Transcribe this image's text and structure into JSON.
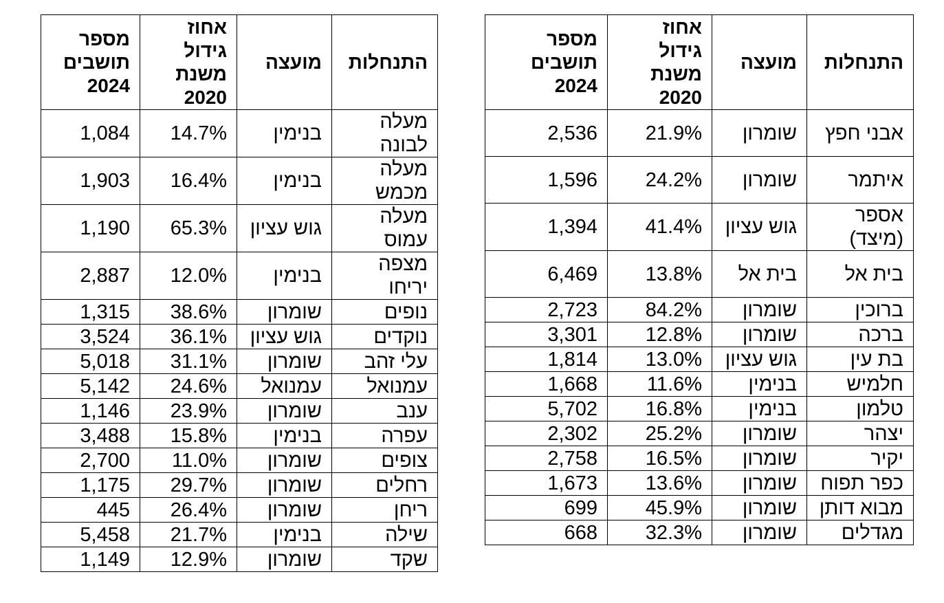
{
  "page": {
    "background_color": "#ffffff",
    "text_color": "#000000",
    "border_color": "#000000",
    "language": "he",
    "direction": "rtl"
  },
  "column_keys": [
    "settlement",
    "council",
    "growth-percent",
    "residents-2024"
  ],
  "right_table": {
    "headers": [
      "התנחלות",
      "מועצה",
      "אחוז\nגידול\nמשנת\n2020",
      "מספר\nתושבים\n2024"
    ],
    "rows": [
      [
        "אבני חפץ",
        "שומרון",
        "21.9%",
        "2,536"
      ],
      [
        "איתמר",
        "שומרון",
        "24.2%",
        "1,596"
      ],
      [
        "אספר\n(מיצד)",
        "גוש עציון",
        "41.4%",
        "1,394"
      ],
      [
        "בית אל",
        "בית אל",
        "13.8%",
        "6,469"
      ],
      [
        "ברוכין",
        "שומרון",
        "84.2%",
        "2,723"
      ],
      [
        "ברכה",
        "שומרון",
        "12.8%",
        "3,301"
      ],
      [
        "בת עין",
        "גוש עציון",
        "13.0%",
        "1,814"
      ],
      [
        "חלמיש",
        "בנימין",
        "11.6%",
        "1,668"
      ],
      [
        "טלמון",
        "בנימין",
        "16.8%",
        "5,702"
      ],
      [
        "יצהר",
        "שומרון",
        "25.2%",
        "2,302"
      ],
      [
        "יקיר",
        "שומרון",
        "16.5%",
        "2,758"
      ],
      [
        "כפר תפוח",
        "שומרון",
        "13.6%",
        "1,673"
      ],
      [
        "מבוא דותן",
        "שומרון",
        "45.9%",
        "699"
      ],
      [
        "מגדלים",
        "שומרון",
        "32.3%",
        "668"
      ]
    ]
  },
  "left_table": {
    "headers": [
      "התנחלות",
      "מועצה",
      "אחוז\nגידול\nמשנת\n2020",
      "מספר\nתושבים\n2024"
    ],
    "rows": [
      [
        "מעלה\nלבונה",
        "בנימין",
        "14.7%",
        "1,084"
      ],
      [
        "מעלה\nמכמש",
        "בנימין",
        "16.4%",
        "1,903"
      ],
      [
        "מעלה\nעמוס",
        "גוש עציון",
        "65.3%",
        "1,190"
      ],
      [
        "מצפה\nיריחו",
        "בנימין",
        "12.0%",
        "2,887"
      ],
      [
        "נופים",
        "שומרון",
        "38.6%",
        "1,315"
      ],
      [
        "נוקדים",
        "גוש עציון",
        "36.1%",
        "3,524"
      ],
      [
        "עלי זהב",
        "שומרון",
        "31.1%",
        "5,018"
      ],
      [
        "עמנואל",
        "עמנואל",
        "24.6%",
        "5,142"
      ],
      [
        "ענב",
        "שומרון",
        "23.9%",
        "1,146"
      ],
      [
        "עפרה",
        "בנימין",
        "15.8%",
        "3,488"
      ],
      [
        "צופים",
        "שומרון",
        "11.0%",
        "2,700"
      ],
      [
        "רחלים",
        "שומרון",
        "29.7%",
        "1,175"
      ],
      [
        "ריחן",
        "שומרון",
        "26.4%",
        "445"
      ],
      [
        "שילה",
        "בנימין",
        "21.7%",
        "5,458"
      ],
      [
        "שקד",
        "שומרון",
        "12.9%",
        "1,149"
      ]
    ]
  }
}
